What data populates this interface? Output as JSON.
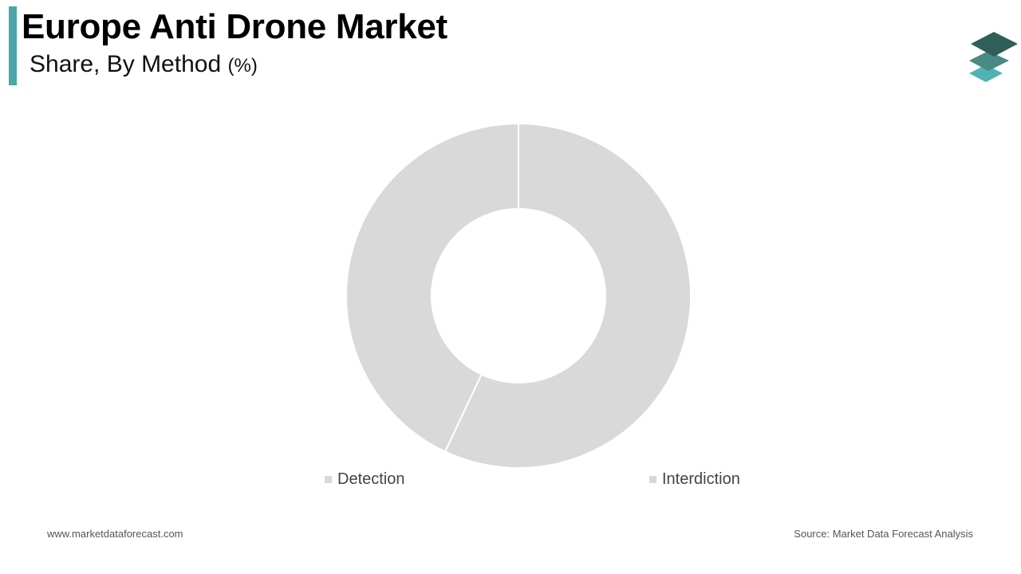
{
  "header": {
    "title": "Europe Anti Drone Market",
    "subtitle": "Share, By Method",
    "unit": "(%)"
  },
  "colors": {
    "accent": "#4aa6a8",
    "slice_fill": "#d9d9d9",
    "slice_border": "#ffffff",
    "logo_dark": "#2f5f58",
    "logo_mid": "#4a8a84",
    "logo_light": "#4fb3b3"
  },
  "logo": {
    "icon": "stacked-layers-icon"
  },
  "chart_data": {
    "type": "pie",
    "donut": true,
    "categories": [
      "Detection",
      "Interdiction"
    ],
    "values": [
      43,
      57
    ],
    "legend_position": "bottom"
  },
  "footer": {
    "website": "www.marketdataforecast.com",
    "source": "Source: Market Data Forecast Analysis"
  }
}
